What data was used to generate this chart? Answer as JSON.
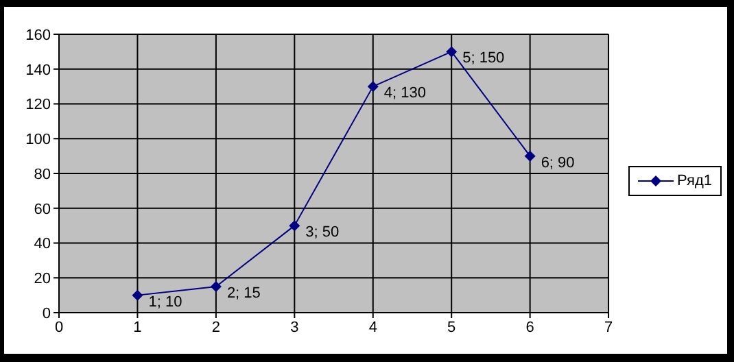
{
  "chart_data": {
    "type": "line",
    "x": [
      1,
      2,
      3,
      4,
      5,
      6
    ],
    "series": [
      {
        "name": "Ряд1",
        "color": "#000080",
        "values": [
          10,
          15,
          50,
          130,
          150,
          90
        ],
        "value_labels": [
          "1; 10",
          "2; 15",
          "3; 50",
          "4; 130",
          "5; 150",
          "6; 90"
        ]
      }
    ],
    "xlim": [
      0,
      7
    ],
    "xticks": [
      0,
      1,
      2,
      3,
      4,
      5,
      6,
      7
    ],
    "ylim": [
      0,
      160
    ],
    "yticks": [
      0,
      20,
      40,
      60,
      80,
      100,
      120,
      140,
      160
    ],
    "grid": true,
    "legend": "right",
    "marker": "diamond",
    "line_style": "solid"
  }
}
